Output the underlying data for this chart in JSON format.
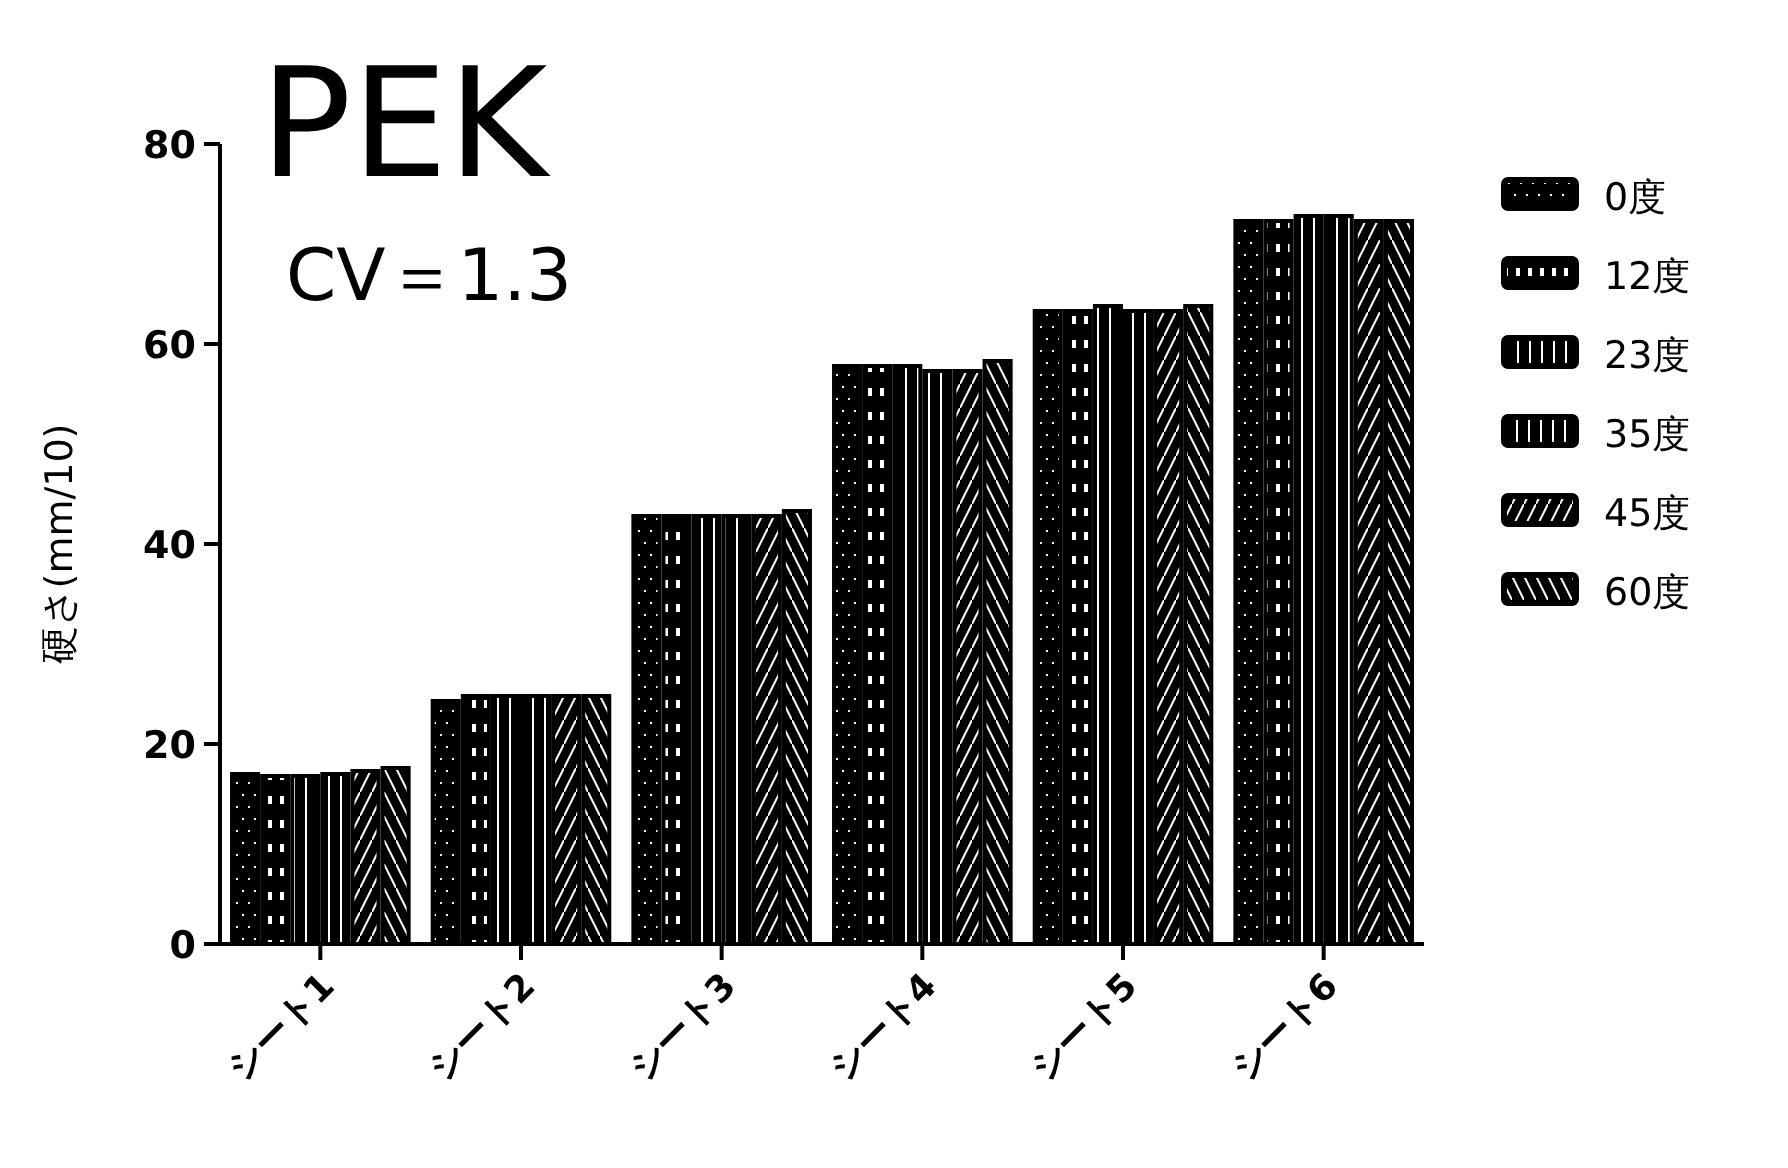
{
  "chart_data": {
    "type": "bar",
    "title": "PEK",
    "subtitle": "CV＝1.3",
    "ylabel": "硬さ(mm/10)",
    "categories": [
      "シート1",
      "シート2",
      "シート3",
      "シート4",
      "シート5",
      "シート6"
    ],
    "ylim": [
      0,
      80
    ],
    "yticks": [
      0,
      20,
      40,
      60,
      80
    ],
    "legend": "right",
    "grid": false,
    "series": [
      {
        "name": "0度",
        "color": "#000000",
        "values": [
          17.2,
          24.5,
          43,
          58,
          63.5,
          72.5
        ]
      },
      {
        "name": "12度",
        "color": "#000000",
        "values": [
          17,
          25,
          43,
          58,
          63.5,
          72.5
        ]
      },
      {
        "name": "23度",
        "color": "#000000",
        "values": [
          17,
          25,
          43,
          58,
          64,
          73
        ]
      },
      {
        "name": "35度",
        "color": "#000000",
        "values": [
          17.2,
          25,
          43,
          57.5,
          63.5,
          73
        ]
      },
      {
        "name": "45度",
        "color": "#000000",
        "values": [
          17.5,
          25,
          43,
          57.5,
          63.5,
          72.5
        ]
      },
      {
        "name": "60度",
        "color": "#000000",
        "values": [
          17.8,
          25,
          43.5,
          58.5,
          64,
          72.5
        ]
      }
    ]
  }
}
